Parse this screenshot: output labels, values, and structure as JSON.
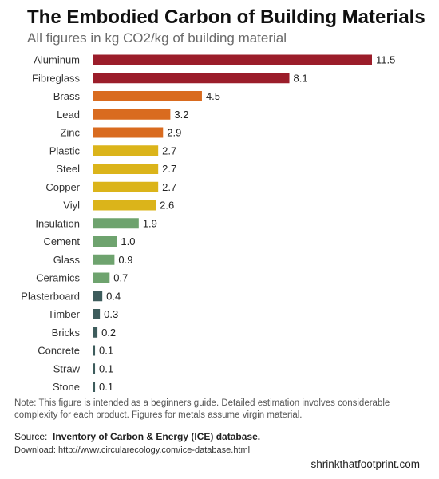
{
  "header": {
    "title": "The Embodied Carbon of Building Materials",
    "subtitle": "All figures in kg CO2/kg of building material"
  },
  "chart_data": {
    "type": "bar",
    "orientation": "horizontal",
    "title": "The Embodied Carbon of Building Materials",
    "subtitle": "All figures in kg CO2/kg of building material",
    "xlabel": "",
    "ylabel": "",
    "xlim": [
      0,
      11.5
    ],
    "grid": false,
    "categories": [
      "Aluminum",
      "Fibreglass",
      "Brass",
      "Lead",
      "Zinc",
      "Plastic",
      "Steel",
      "Copper",
      "Viyl",
      "Insulation",
      "Cement",
      "Glass",
      "Ceramics",
      "Plasterboard",
      "Timber",
      "Bricks",
      "Concrete",
      "Straw",
      "Stone"
    ],
    "values": [
      11.5,
      8.1,
      4.5,
      3.2,
      2.9,
      2.7,
      2.7,
      2.7,
      2.6,
      1.9,
      1.0,
      0.9,
      0.7,
      0.4,
      0.3,
      0.2,
      0.1,
      0.1,
      0.1
    ],
    "value_labels": [
      "11.5",
      "8.1",
      "4.5",
      "3.2",
      "2.9",
      "2.7",
      "2.7",
      "2.7",
      "2.6",
      "1.9",
      "1.0",
      "0.9",
      "0.7",
      "0.4",
      "0.3",
      "0.2",
      "0.1",
      "0.1",
      "0.1"
    ],
    "colors": [
      "#9b1d2a",
      "#9b1d2a",
      "#d96b1f",
      "#d96b1f",
      "#d96b1f",
      "#dbb41a",
      "#dbb41a",
      "#dbb41a",
      "#dbb41a",
      "#6ea36e",
      "#6ea36e",
      "#6ea36e",
      "#6ea36e",
      "#3d5c5c",
      "#3d5c5c",
      "#3d5c5c",
      "#3d5c5c",
      "#3d5c5c",
      "#3d5c5c"
    ]
  },
  "footer": {
    "note": "Note: This figure is intended as a beginners guide.  Detailed estimation involves considerable complexity for each product.  Figures for metals assume virgin material.",
    "source_label": "Source:",
    "source_text": "Inventory of Carbon & Energy (ICE) database.",
    "download": "Download: http://www.circularecology.com/ice-database.html",
    "brand": "shrinkthatfootprint.com"
  }
}
